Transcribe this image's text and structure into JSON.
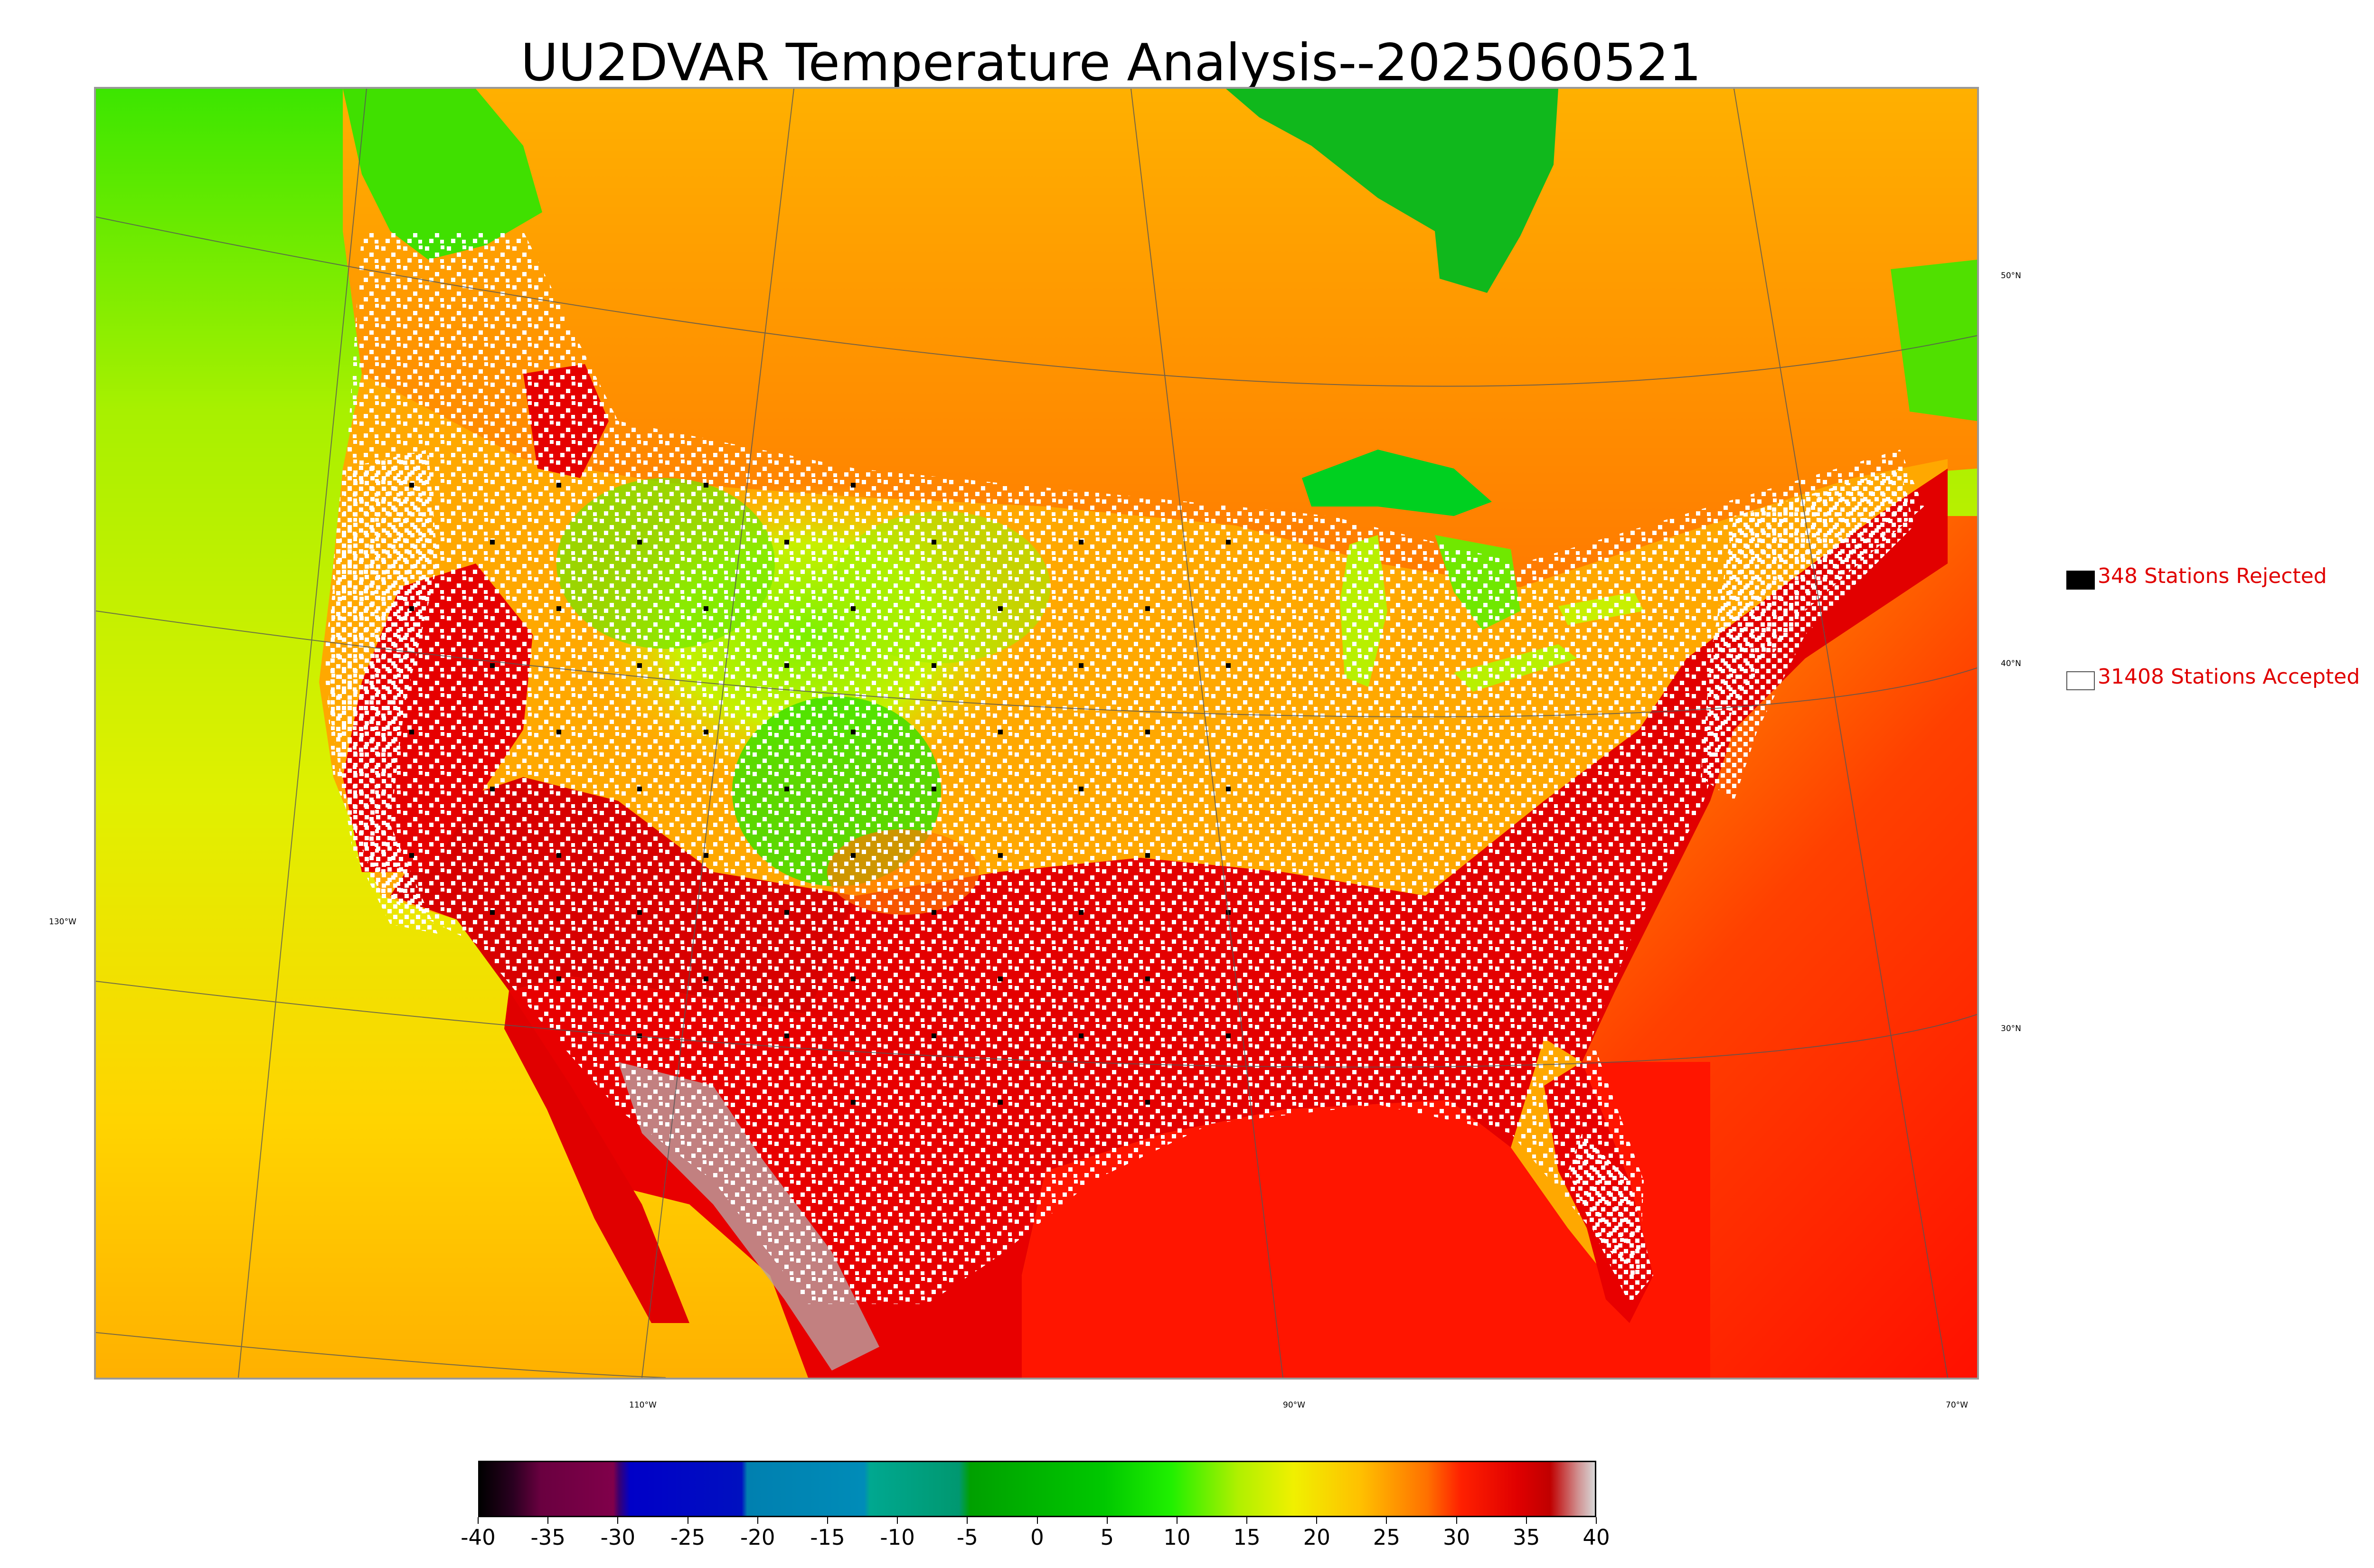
{
  "title": "UU2DVAR Temperature Analysis--2025060521",
  "map": {
    "lon_labels": [
      "110°W",
      "90°W",
      "70°W"
    ],
    "lat_labels": [
      "50°N",
      "40°N",
      "30°N"
    ],
    "left_label": "130°W"
  },
  "legend": {
    "rejected": {
      "label": "348 Stations Rejected",
      "color": "#000000"
    },
    "accepted": {
      "label": "31408 Stations Accepted",
      "color": "#ffffff"
    }
  },
  "colorbar": {
    "ticks": [
      "-40",
      "-35",
      "-30",
      "-25",
      "-20",
      "-15",
      "-10",
      "-5",
      "0",
      "5",
      "10",
      "15",
      "20",
      "25",
      "30",
      "35",
      "40"
    ],
    "range": [
      -40,
      40
    ]
  },
  "colors": {
    "ocean_warm": "#ff1a00",
    "land_hot": "#e20000",
    "land_warm": "#ff8c00",
    "land_mild": "#ffcc00",
    "land_cool": "#c8f000",
    "land_cold": "#00d01e",
    "pacific": "#d8f000",
    "text_alert": "#e00000"
  }
}
